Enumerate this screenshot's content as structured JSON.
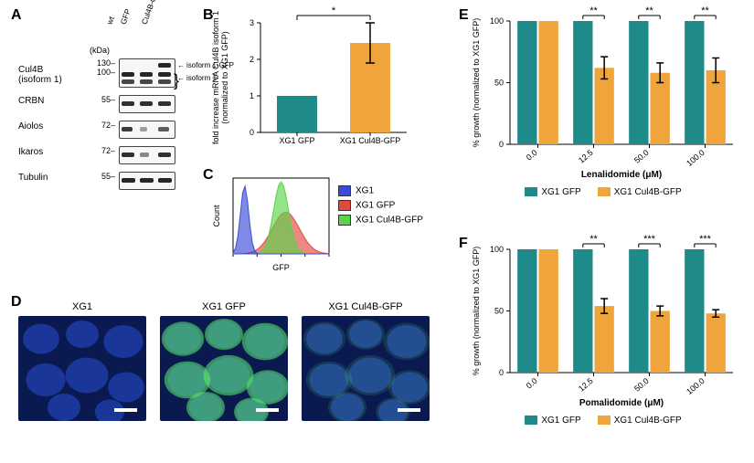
{
  "panel_letters": {
    "A": "A",
    "B": "B",
    "C": "C",
    "D": "D",
    "E": "E",
    "F": "F"
  },
  "colors": {
    "teal": "#1f8a8a",
    "orange": "#f0a43c",
    "blue_hist": "#3b4bd8",
    "red_hist": "#e04a3f",
    "green_hist": "#5ad24a",
    "dapi_dark": "#0a1a50",
    "dapi_mid": "#1c3aa0",
    "gfp_green": "#5ff06a",
    "band": "#1a1a1a",
    "axis": "#000000",
    "bg": "#ffffff"
  },
  "panelA": {
    "kda_label": "(kDa)",
    "lanes": [
      "wt",
      "GFP",
      "Cul4B-GFP"
    ],
    "rows": [
      {
        "label": "Cul4B\n(isoform 1)",
        "mw": "130–\n100–",
        "height": 30,
        "bands": [
          {
            "lane": 2,
            "y": 4,
            "w": 14,
            "op": 0.95
          },
          {
            "lane": 0,
            "y": 14,
            "w": 14,
            "op": 0.95
          },
          {
            "lane": 1,
            "y": 14,
            "w": 14,
            "op": 0.95
          },
          {
            "lane": 2,
            "y": 14,
            "w": 14,
            "op": 0.95
          },
          {
            "lane": 0,
            "y": 22,
            "w": 14,
            "op": 0.8
          },
          {
            "lane": 1,
            "y": 22,
            "w": 14,
            "op": 0.8
          },
          {
            "lane": 2,
            "y": 22,
            "w": 14,
            "op": 0.8
          }
        ],
        "arrows": [
          {
            "text": "isoform 1-GFP",
            "y": 3
          },
          {
            "text": "isoform 1",
            "y": 17,
            "brace": true
          }
        ]
      },
      {
        "label": "CRBN",
        "mw": "55–",
        "height": 18,
        "bands": [
          {
            "lane": 0,
            "y": 6,
            "w": 14,
            "op": 0.9
          },
          {
            "lane": 1,
            "y": 6,
            "w": 14,
            "op": 0.9
          },
          {
            "lane": 2,
            "y": 6,
            "w": 14,
            "op": 0.9
          }
        ]
      },
      {
        "label": "Aiolos",
        "mw": "72–",
        "height": 18,
        "bands": [
          {
            "lane": 0,
            "y": 6,
            "w": 12,
            "op": 0.85
          },
          {
            "lane": 1,
            "y": 6,
            "w": 8,
            "op": 0.4
          },
          {
            "lane": 2,
            "y": 6,
            "w": 12,
            "op": 0.7
          }
        ]
      },
      {
        "label": "Ikaros",
        "mw": "72–",
        "height": 18,
        "bands": [
          {
            "lane": 0,
            "y": 6,
            "w": 14,
            "op": 0.9
          },
          {
            "lane": 1,
            "y": 6,
            "w": 10,
            "op": 0.5
          },
          {
            "lane": 2,
            "y": 6,
            "w": 14,
            "op": 0.9
          }
        ]
      },
      {
        "label": "Tubulin",
        "mw": "55–",
        "height": 18,
        "bands": [
          {
            "lane": 0,
            "y": 6,
            "w": 15,
            "op": 0.95
          },
          {
            "lane": 1,
            "y": 6,
            "w": 15,
            "op": 0.95
          },
          {
            "lane": 2,
            "y": 6,
            "w": 15,
            "op": 0.95
          }
        ]
      }
    ]
  },
  "panelB": {
    "ylabel": "fold increase mRNA Cul4B isoform 1\n(normalized to XG1 GFP)",
    "ylim": [
      0,
      3
    ],
    "ytick_step": 1,
    "categories": [
      "XG1 GFP",
      "XG1 Cul4B-GFP"
    ],
    "values": [
      1.0,
      2.45
    ],
    "errors": [
      0,
      0.55
    ],
    "bar_colors": [
      "#1f8a8a",
      "#f0a43c"
    ],
    "sig_label": "*",
    "label_fontsize": 8,
    "bar_width": 0.55
  },
  "panelC": {
    "xlabel": "GFP",
    "ylabel": "Count",
    "legend": [
      {
        "label": "XG1",
        "color": "#3b4bd8"
      },
      {
        "label": "XG1 GFP",
        "color": "#e04a3f"
      },
      {
        "label": "XG1 Cul4B-GFP",
        "color": "#5ad24a"
      }
    ]
  },
  "panelD": {
    "images": [
      {
        "label": "XG1",
        "gfp": false
      },
      {
        "label": "XG1 GFP",
        "gfp": true,
        "gfp_strength": 1.0
      },
      {
        "label": "XG1 Cul4B-GFP",
        "gfp": true,
        "gfp_strength": 0.25
      }
    ]
  },
  "panelE": {
    "ylabel": "% growth (normalized to XG1 GFP)",
    "xlabel": "Lenalidomide (μM)",
    "ylim": [
      0,
      100
    ],
    "ytick_step": 50,
    "categories": [
      "0.0",
      "12.5",
      "50.0",
      "100.0"
    ],
    "series": [
      {
        "name": "XG1 GFP",
        "color": "#1f8a8a",
        "values": [
          100,
          100,
          100,
          100
        ],
        "errors": [
          0,
          0,
          0,
          0
        ]
      },
      {
        "name": "XG1 Cul4B-GFP",
        "color": "#f0a43c",
        "values": [
          100,
          62,
          58,
          60
        ],
        "errors": [
          0,
          9,
          8,
          10
        ]
      }
    ],
    "sig": [
      "",
      "**",
      "**",
      "**"
    ],
    "bar_width": 0.35
  },
  "panelF": {
    "ylabel": "% growth (normalized to XG1 GFP)",
    "xlabel": "Pomalidomide (μM)",
    "ylim": [
      0,
      100
    ],
    "ytick_step": 50,
    "categories": [
      "0.0",
      "12.5",
      "50.0",
      "100.0"
    ],
    "series": [
      {
        "name": "XG1 GFP",
        "color": "#1f8a8a",
        "values": [
          100,
          100,
          100,
          100
        ],
        "errors": [
          0,
          0,
          0,
          0
        ]
      },
      {
        "name": "XG1 Cul4B-GFP",
        "color": "#f0a43c",
        "values": [
          100,
          54,
          50,
          48
        ],
        "errors": [
          0,
          6,
          4,
          3
        ]
      }
    ],
    "sig": [
      "",
      "**",
      "***",
      "***"
    ],
    "bar_width": 0.35
  }
}
